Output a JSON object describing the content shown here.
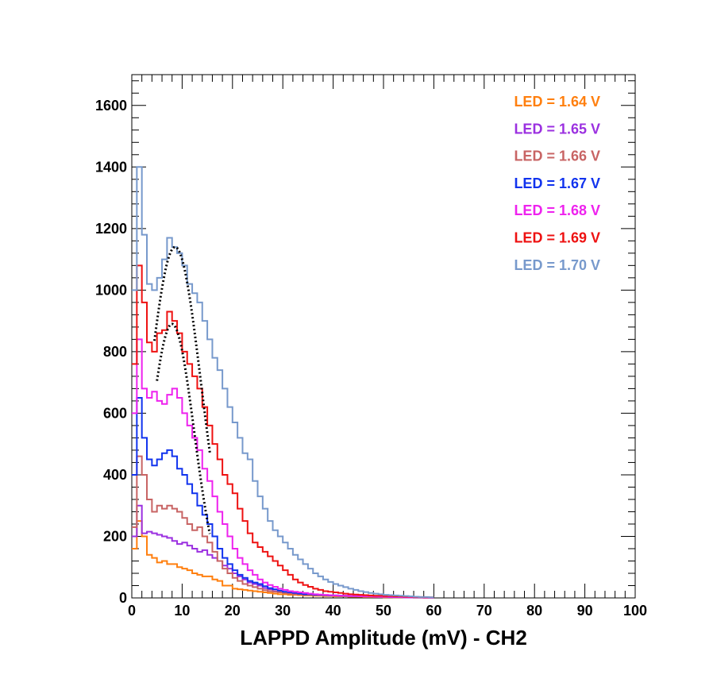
{
  "chart_data": {
    "type": "histogram",
    "title": "",
    "xlabel": "LAPPD Amplitude (mV) - CH2",
    "ylabel": "",
    "xlim": [
      0,
      100
    ],
    "ylim": [
      0,
      1700
    ],
    "bin_width": 1,
    "x_ticks": [
      0,
      10,
      20,
      30,
      40,
      50,
      60,
      70,
      80,
      90,
      100
    ],
    "y_ticks": [
      0,
      200,
      400,
      600,
      800,
      1000,
      1200,
      1400,
      1600
    ],
    "legend_position": "top-right",
    "series": [
      {
        "name": "LED = 1.64 V",
        "color": "#ff7f0e",
        "values": [
          160,
          250,
          200,
          140,
          130,
          115,
          120,
          110,
          110,
          100,
          95,
          90,
          80,
          75,
          70,
          70,
          60,
          55,
          40,
          40,
          30,
          28,
          26,
          24,
          22,
          20,
          18,
          16,
          14,
          12,
          12,
          10,
          10,
          9,
          8,
          8,
          7,
          7,
          6,
          6,
          5,
          5,
          5,
          4,
          4,
          4,
          3,
          3,
          3,
          3,
          2,
          2,
          2,
          2,
          2,
          2,
          1,
          1,
          1,
          1
        ]
      },
      {
        "name": "LED = 1.65 V",
        "color": "#9b30e0",
        "values": [
          200,
          300,
          210,
          215,
          210,
          205,
          200,
          195,
          185,
          175,
          180,
          170,
          160,
          150,
          155,
          140,
          130,
          120,
          105,
          95,
          80,
          70,
          60,
          50,
          45,
          40,
          32,
          28,
          22,
          20,
          18,
          18,
          15,
          14,
          12,
          12,
          10,
          10,
          9,
          8,
          8,
          7,
          7,
          6,
          6,
          5,
          5,
          5,
          4,
          4,
          4,
          3,
          3,
          3,
          2,
          2,
          2,
          2,
          2,
          1
        ]
      },
      {
        "name": "LED = 1.66 V",
        "color": "#c86464",
        "values": [
          230,
          460,
          400,
          320,
          280,
          300,
          290,
          300,
          290,
          280,
          260,
          240,
          220,
          230,
          200,
          180,
          150,
          120,
          95,
          80,
          65,
          55,
          45,
          40,
          35,
          30,
          25,
          22,
          20,
          18,
          16,
          14,
          12,
          12,
          10,
          10,
          9,
          8,
          8,
          7,
          7,
          6,
          6,
          5,
          5,
          5,
          4,
          4,
          4,
          3,
          3,
          3,
          2,
          2,
          2,
          2,
          1,
          1,
          1,
          1
        ]
      },
      {
        "name": "LED = 1.67 V",
        "color": "#1133ee",
        "values": [
          400,
          650,
          520,
          450,
          430,
          450,
          470,
          480,
          460,
          420,
          400,
          370,
          340,
          300,
          270,
          240,
          200,
          160,
          130,
          110,
          90,
          75,
          65,
          55,
          50,
          45,
          38,
          32,
          28,
          24,
          20,
          18,
          16,
          14,
          12,
          12,
          10,
          10,
          9,
          8,
          8,
          7,
          7,
          6,
          6,
          5,
          5,
          5,
          4,
          4,
          4,
          3,
          3,
          3,
          2,
          2,
          2,
          2,
          1,
          1
        ]
      },
      {
        "name": "LED = 1.68 V",
        "color": "#ee22ee",
        "values": [
          600,
          840,
          680,
          650,
          670,
          640,
          630,
          660,
          680,
          650,
          600,
          560,
          520,
          480,
          420,
          380,
          330,
          280,
          240,
          200,
          160,
          130,
          110,
          90,
          75,
          60,
          50,
          42,
          36,
          30,
          26,
          22,
          20,
          18,
          16,
          14,
          12,
          11,
          10,
          9,
          8,
          7,
          7,
          6,
          6,
          5,
          5,
          5,
          4,
          4,
          4,
          3,
          3,
          3,
          2,
          2,
          2,
          2,
          1,
          1
        ]
      },
      {
        "name": "LED = 1.69 V",
        "color": "#ee1111",
        "values": [
          760,
          1080,
          960,
          830,
          800,
          860,
          870,
          930,
          900,
          860,
          800,
          760,
          720,
          680,
          620,
          560,
          500,
          450,
          400,
          370,
          340,
          290,
          250,
          210,
          180,
          165,
          150,
          135,
          120,
          105,
          90,
          75,
          60,
          50,
          42,
          36,
          30,
          26,
          22,
          20,
          18,
          16,
          14,
          12,
          11,
          10,
          9,
          8,
          7,
          7,
          6,
          6,
          5,
          5,
          4,
          4,
          3,
          3,
          2,
          2
        ]
      },
      {
        "name": "LED = 1.70 V",
        "color": "#7799cc",
        "values": [
          1000,
          1400,
          1180,
          1020,
          1000,
          1040,
          1100,
          1170,
          1140,
          1120,
          1080,
          1020,
          990,
          960,
          900,
          840,
          780,
          740,
          680,
          620,
          570,
          520,
          470,
          450,
          380,
          330,
          290,
          250,
          220,
          200,
          180,
          160,
          140,
          125,
          110,
          95,
          80,
          70,
          60,
          52,
          45,
          40,
          35,
          30,
          26,
          22,
          19,
          16,
          14,
          12,
          10,
          9,
          8,
          7,
          6,
          5,
          4,
          3,
          3,
          2
        ]
      }
    ],
    "fits": [
      {
        "name": "fit-1.70V",
        "color": "#000000",
        "x_range": [
          4.5,
          15.5
        ],
        "amplitude": 1140,
        "mean": 8.6,
        "sigma": 5.2
      },
      {
        "name": "fit-1.69V",
        "color": "#000000",
        "x_range": [
          5.0,
          15.5
        ],
        "amplitude": 890,
        "mean": 8.0,
        "sigma": 4.4
      }
    ]
  }
}
